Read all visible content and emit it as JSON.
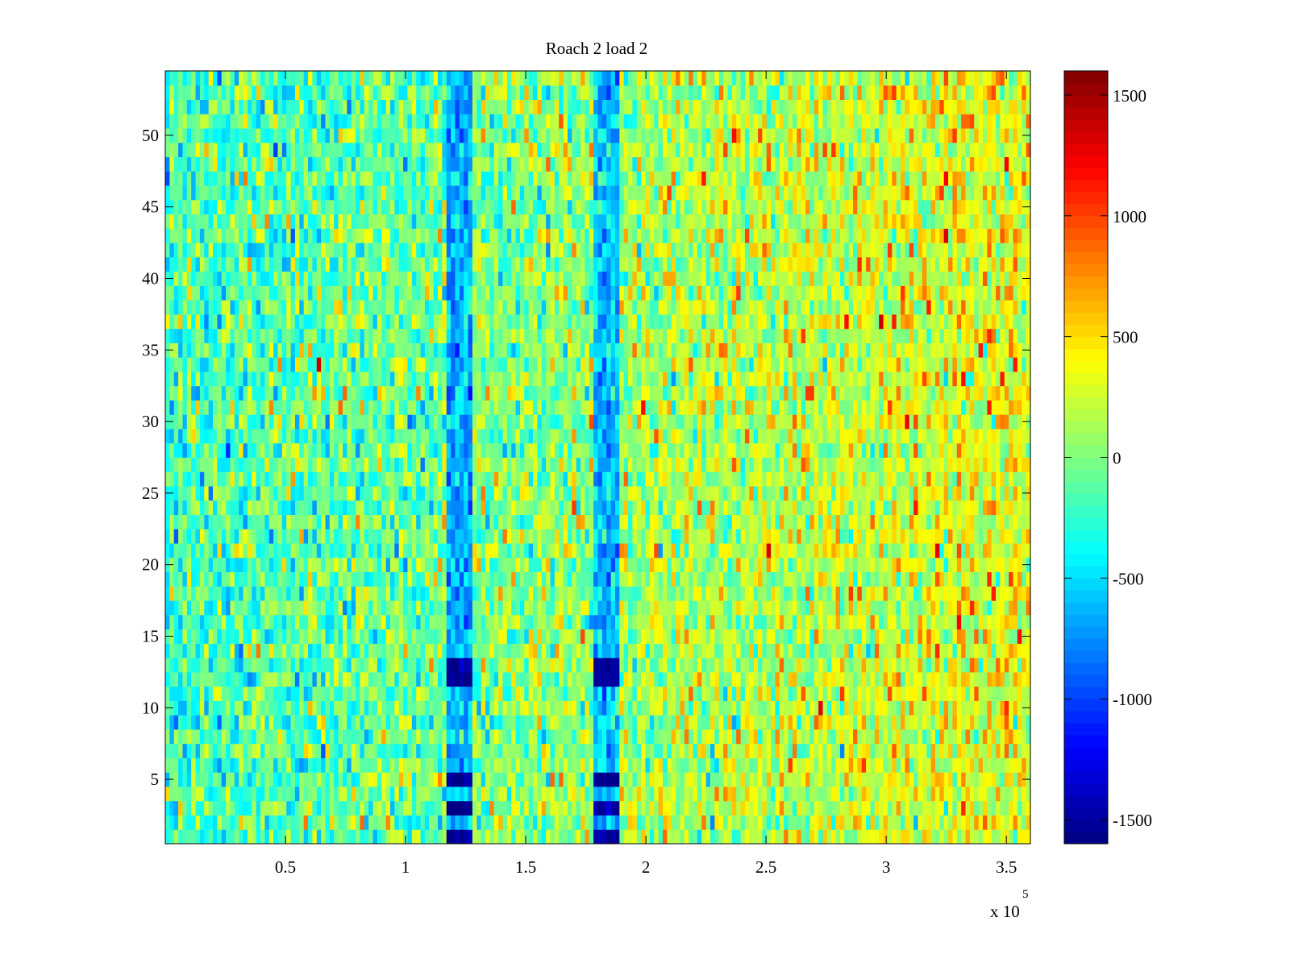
{
  "chart_data": {
    "type": "heatmap",
    "title": "Roach 2 load 2",
    "xlabel": "",
    "ylabel": "",
    "x_exponent_label": "x 10",
    "x_exponent": "5",
    "xlim": [
      0,
      360000
    ],
    "ylim": [
      0.5,
      54.5
    ],
    "rows": 54,
    "x_ticks": [
      50000,
      100000,
      150000,
      200000,
      250000,
      300000,
      350000
    ],
    "x_tick_labels": [
      "0.5",
      "1",
      "1.5",
      "2",
      "2.5",
      "3",
      "3.5"
    ],
    "y_ticks": [
      5,
      10,
      15,
      20,
      25,
      30,
      35,
      40,
      45,
      50
    ],
    "y_tick_labels": [
      "5",
      "10",
      "15",
      "20",
      "25",
      "30",
      "35",
      "40",
      "45",
      "50"
    ],
    "colormap": "jet",
    "clim": [
      -1600,
      1600
    ],
    "colorbar_ticks": [
      1500,
      1000,
      500,
      0,
      -500,
      -1000,
      -1500
    ],
    "colorbar_tick_labels": [
      "1500",
      "1000",
      "500",
      "0",
      "-500",
      "-1000",
      "-1500"
    ],
    "approx_model": {
      "baseline_left": -230,
      "baseline_right": 320,
      "noise_sd": 260,
      "low_stripes": [
        {
          "x_range": [
            117000,
            127000
          ],
          "mean": -650,
          "very_low_rows": [
            1,
            3,
            5,
            12,
            13
          ],
          "very_low_value": -1550
        },
        {
          "x_range": [
            179000,
            189000
          ],
          "mean": -600,
          "very_low_rows": [
            1,
            3,
            5,
            12,
            13
          ],
          "very_low_value": -1550
        }
      ],
      "columns_rendered": 200
    }
  }
}
